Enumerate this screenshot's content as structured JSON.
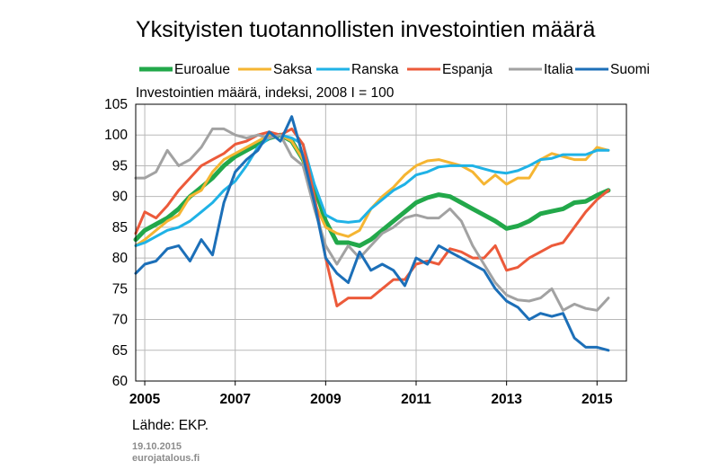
{
  "chart_data": {
    "type": "line",
    "title": "Yksityisten tuotannollisten investointien määrä",
    "subtitle": "Investointien määrä, indeksi, 2008 I = 100",
    "xlabel": "",
    "ylabel": "",
    "xlim": [
      2004.8,
      2015.65
    ],
    "ylim": [
      60,
      105
    ],
    "yticks": [
      "105",
      "100",
      "95",
      "90",
      "85",
      "80",
      "75",
      "70",
      "65",
      "60"
    ],
    "ytick_values": [
      105,
      100,
      95,
      90,
      85,
      80,
      75,
      70,
      65,
      60
    ],
    "xticks": [
      "2005",
      "2007",
      "2009",
      "2011",
      "2013",
      "2015"
    ],
    "xtick_values": [
      2005,
      2007,
      2009,
      2011,
      2013,
      2015
    ],
    "grid": true,
    "legend_position": "top",
    "source": "Lähde: EKP.",
    "date": "19.10.2015",
    "site": "eurojatalous.fi",
    "series": [
      {
        "name": "Euroalue",
        "color": "#22a84a",
        "width": 5,
        "x": [
          2004.8,
          2005.0,
          2005.25,
          2005.5,
          2005.75,
          2006.0,
          2006.25,
          2006.5,
          2006.75,
          2007.0,
          2007.25,
          2007.5,
          2007.75,
          2008.0,
          2008.25,
          2008.5,
          2008.75,
          2009.0,
          2009.25,
          2009.5,
          2009.75,
          2010.0,
          2010.25,
          2010.5,
          2010.75,
          2011.0,
          2011.25,
          2011.5,
          2011.75,
          2012.0,
          2012.25,
          2012.5,
          2012.75,
          2013.0,
          2013.25,
          2013.5,
          2013.75,
          2014.0,
          2014.25,
          2014.5,
          2014.75,
          2015.0,
          2015.25
        ],
        "values": [
          83,
          84.5,
          85.5,
          86.5,
          88,
          90,
          91.5,
          93,
          95,
          96.5,
          97.5,
          98.5,
          99.5,
          100,
          99,
          96,
          91.5,
          86,
          82.5,
          82.5,
          82,
          83,
          84.5,
          86,
          87.5,
          89,
          89.8,
          90.3,
          90,
          89,
          88,
          87,
          86,
          84.8,
          85.2,
          86,
          87.2,
          87.6,
          88,
          89,
          89.2,
          90.2,
          91
        ]
      },
      {
        "name": "Saksa",
        "color": "#f5b532",
        "width": 3,
        "x": [
          2004.8,
          2005.0,
          2005.25,
          2005.5,
          2005.75,
          2006.0,
          2006.25,
          2006.5,
          2006.75,
          2007.0,
          2007.25,
          2007.5,
          2007.75,
          2008.0,
          2008.25,
          2008.5,
          2008.75,
          2009.0,
          2009.25,
          2009.5,
          2009.75,
          2010.0,
          2010.25,
          2010.5,
          2010.75,
          2011.0,
          2011.25,
          2011.5,
          2011.75,
          2012.0,
          2012.25,
          2012.5,
          2012.75,
          2013.0,
          2013.25,
          2013.5,
          2013.75,
          2014.0,
          2014.25,
          2014.5,
          2014.75,
          2015.0,
          2015.25
        ],
        "values": [
          82,
          83,
          84.5,
          86,
          87,
          90,
          91,
          94,
          96,
          97,
          98,
          99,
          100,
          100,
          99,
          96,
          89,
          85,
          84,
          83.5,
          84.5,
          88,
          90,
          91.5,
          93.5,
          95,
          95.8,
          96,
          95.5,
          95,
          94,
          92,
          93.5,
          92,
          93,
          93,
          96,
          97,
          96.5,
          96,
          96,
          98,
          97.5
        ]
      },
      {
        "name": "Ranska",
        "color": "#1fb2e6",
        "width": 3,
        "x": [
          2004.8,
          2005.0,
          2005.25,
          2005.5,
          2005.75,
          2006.0,
          2006.25,
          2006.5,
          2006.75,
          2007.0,
          2007.25,
          2007.5,
          2007.75,
          2008.0,
          2008.25,
          2008.5,
          2008.75,
          2009.0,
          2009.25,
          2009.5,
          2009.75,
          2010.0,
          2010.25,
          2010.5,
          2010.75,
          2011.0,
          2011.25,
          2011.5,
          2011.75,
          2012.0,
          2012.25,
          2012.5,
          2012.75,
          2013.0,
          2013.25,
          2013.5,
          2013.75,
          2014.0,
          2014.25,
          2014.5,
          2014.75,
          2015.0,
          2015.25
        ],
        "values": [
          82,
          82.5,
          83.5,
          84.5,
          85,
          86,
          87.5,
          89,
          91,
          92.5,
          95,
          98,
          99.5,
          100,
          99.5,
          98.5,
          92,
          87,
          86,
          85.8,
          86,
          88,
          89.5,
          91,
          92,
          93.5,
          94,
          94.8,
          95,
          95,
          95,
          94.5,
          94,
          93.8,
          94.2,
          95,
          96,
          96.2,
          96.8,
          96.8,
          96.8,
          97.5,
          97.5
        ]
      },
      {
        "name": "Espanja",
        "color": "#ec5a3a",
        "width": 3,
        "x": [
          2004.8,
          2005.0,
          2005.25,
          2005.5,
          2005.75,
          2006.0,
          2006.25,
          2006.5,
          2006.75,
          2007.0,
          2007.25,
          2007.5,
          2007.75,
          2008.0,
          2008.25,
          2008.5,
          2008.75,
          2009.0,
          2009.25,
          2009.5,
          2009.75,
          2010.0,
          2010.25,
          2010.5,
          2010.75,
          2011.0,
          2011.25,
          2011.5,
          2011.75,
          2012.0,
          2012.25,
          2012.5,
          2012.75,
          2013.0,
          2013.25,
          2013.5,
          2013.75,
          2014.0,
          2014.25,
          2014.5,
          2014.75,
          2015.0,
          2015.25
        ],
        "values": [
          84,
          87.5,
          86.5,
          88.5,
          91,
          93,
          95,
          96,
          97,
          98.5,
          99,
          100,
          100.5,
          100,
          101,
          98.5,
          90,
          80,
          72.2,
          73.5,
          73.5,
          73.5,
          75,
          76.5,
          76.5,
          79,
          79.5,
          79,
          81.5,
          81,
          80,
          80,
          82,
          78,
          78.5,
          80,
          81,
          82,
          82.5,
          85,
          87.5,
          89.5,
          91
        ]
      },
      {
        "name": "Italia",
        "color": "#a2a2a2",
        "width": 3,
        "x": [
          2004.8,
          2005.0,
          2005.25,
          2005.5,
          2005.75,
          2006.0,
          2006.25,
          2006.5,
          2006.75,
          2007.0,
          2007.25,
          2007.5,
          2007.75,
          2008.0,
          2008.25,
          2008.5,
          2008.75,
          2009.0,
          2009.25,
          2009.5,
          2009.75,
          2010.0,
          2010.25,
          2010.5,
          2010.75,
          2011.0,
          2011.25,
          2011.5,
          2011.75,
          2012.0,
          2012.25,
          2012.5,
          2012.75,
          2013.0,
          2013.25,
          2013.5,
          2013.75,
          2014.0,
          2014.25,
          2014.5,
          2014.75,
          2015.0,
          2015.25
        ],
        "values": [
          93,
          93,
          94,
          97.5,
          95,
          96,
          98,
          101,
          101,
          100,
          99.5,
          100,
          99.5,
          100,
          96.5,
          95,
          88,
          82,
          79,
          82,
          80,
          82,
          84,
          85,
          86.5,
          87,
          86.5,
          86.5,
          88,
          86,
          82,
          79,
          76,
          74,
          73.2,
          73,
          73.5,
          75,
          71.5,
          72.5,
          71.8,
          71.5,
          73.5
        ]
      },
      {
        "name": "Suomi",
        "color": "#1c6fb8",
        "width": 3,
        "x": [
          2004.8,
          2005.0,
          2005.25,
          2005.5,
          2005.75,
          2006.0,
          2006.25,
          2006.5,
          2006.75,
          2007.0,
          2007.25,
          2007.5,
          2007.75,
          2008.0,
          2008.25,
          2008.5,
          2008.75,
          2009.0,
          2009.25,
          2009.5,
          2009.75,
          2010.0,
          2010.25,
          2010.5,
          2010.75,
          2011.0,
          2011.25,
          2011.5,
          2011.75,
          2012.0,
          2012.25,
          2012.5,
          2012.75,
          2013.0,
          2013.25,
          2013.5,
          2013.75,
          2014.0,
          2014.25,
          2014.5,
          2014.75,
          2015.0,
          2015.25
        ],
        "values": [
          77.5,
          79,
          79.5,
          81.5,
          82,
          79.5,
          83,
          80.5,
          89,
          94,
          96,
          97.5,
          100.5,
          99,
          103,
          96.5,
          89,
          80,
          77.5,
          76,
          81,
          78,
          79,
          78,
          75.5,
          80,
          79,
          82,
          81,
          80,
          79,
          78,
          75,
          73,
          72,
          70,
          71,
          70.5,
          71,
          67,
          65.5,
          65.5,
          65
        ]
      }
    ]
  }
}
